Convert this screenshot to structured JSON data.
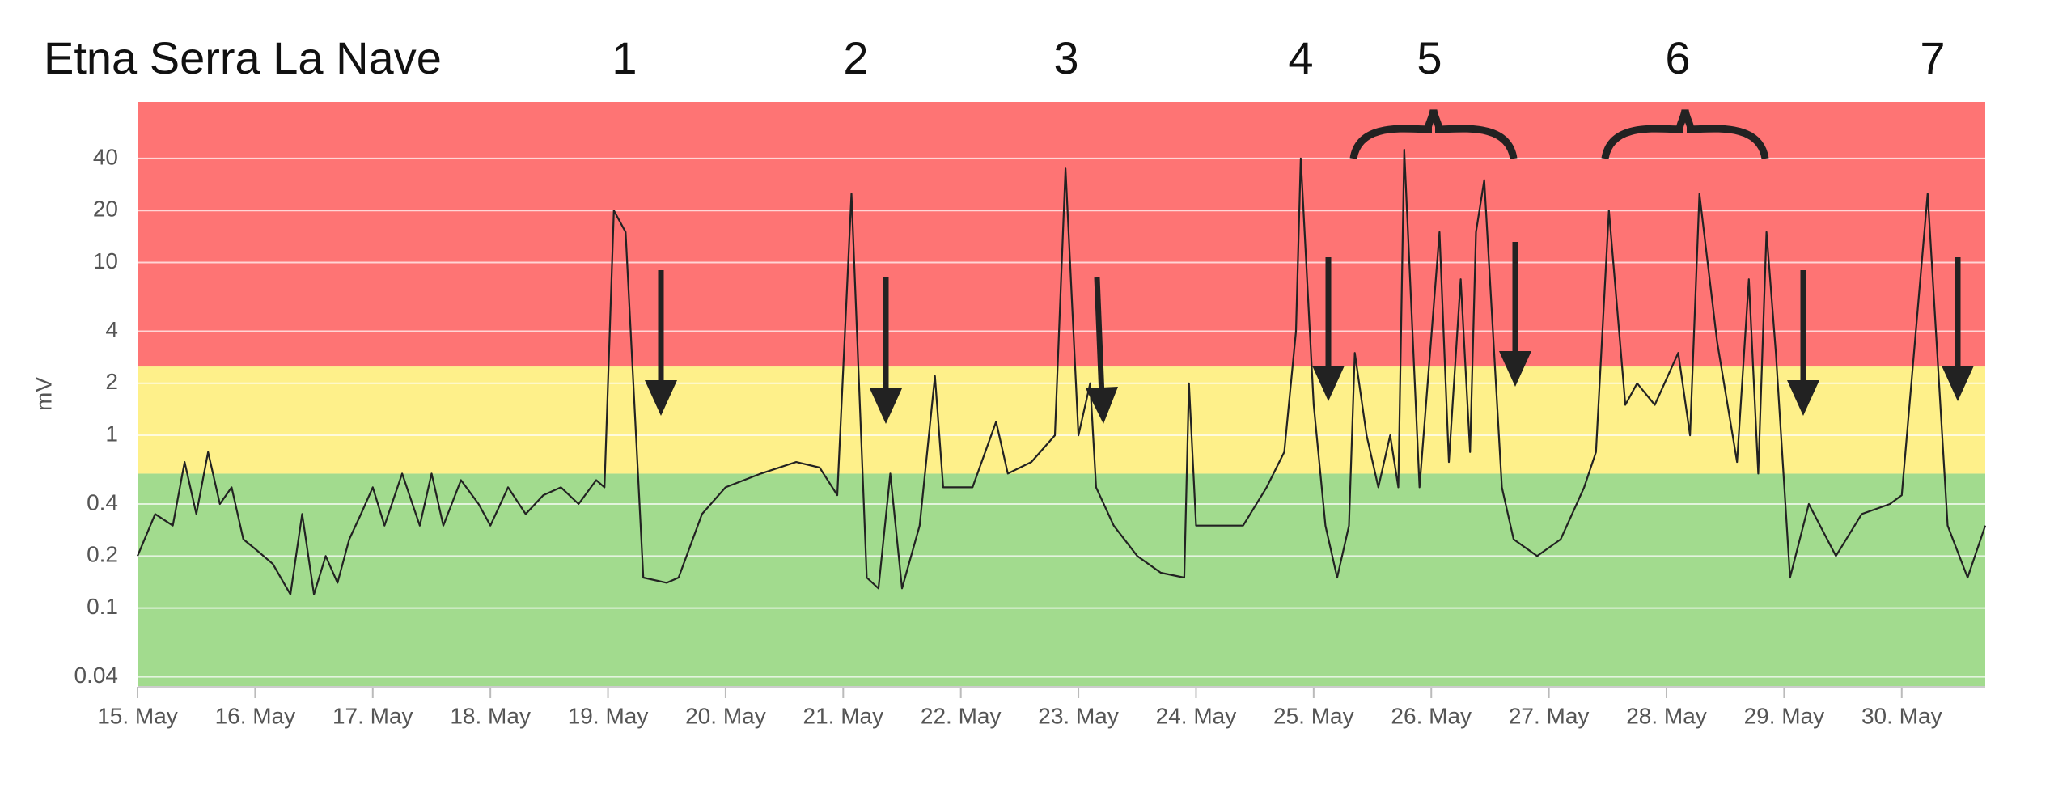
{
  "chart_data": {
    "type": "line",
    "title": "Etna Serra La Nave",
    "y_label": "mV",
    "log_y": true,
    "grid": true,
    "color": "#222222",
    "thresholds": [
      0.6,
      2.5
    ],
    "band_colors": [
      "#a2db8e",
      "#fef08a",
      "#fe7474"
    ],
    "annotations": [
      "1",
      "2",
      "3",
      "4",
      "5",
      "6",
      "7"
    ],
    "xlim": [
      15,
      30.71
    ],
    "xticks": [
      {
        "value": 15,
        "label": "15. May"
      },
      {
        "value": 16,
        "label": "16. May"
      },
      {
        "value": 17,
        "label": "17. May"
      },
      {
        "value": 18,
        "label": "18. May"
      },
      {
        "value": 19,
        "label": "19. May"
      },
      {
        "value": 20,
        "label": "20. May"
      },
      {
        "value": 21,
        "label": "21. May"
      },
      {
        "value": 22,
        "label": "22. May"
      },
      {
        "value": 23,
        "label": "23. May"
      },
      {
        "value": 24,
        "label": "24. May"
      },
      {
        "value": 25,
        "label": "25. May"
      },
      {
        "value": 26,
        "label": "26. May"
      },
      {
        "value": 27,
        "label": "27. May"
      },
      {
        "value": 28,
        "label": "28. May"
      },
      {
        "value": 29,
        "label": "29. May"
      },
      {
        "value": 30,
        "label": "30. May"
      }
    ],
    "ylim": [
      0.035,
      85
    ],
    "yticks": [
      0.04,
      0.1,
      0.2,
      0.4,
      1,
      2,
      4,
      10,
      20,
      40
    ],
    "x": [
      15.0,
      15.15,
      15.3,
      15.4,
      15.5,
      15.6,
      15.7,
      15.8,
      15.9,
      16.0,
      16.15,
      16.3,
      16.4,
      16.5,
      16.6,
      16.7,
      16.8,
      16.9,
      17.0,
      17.1,
      17.25,
      17.4,
      17.5,
      17.6,
      17.75,
      17.9,
      18.0,
      18.15,
      18.3,
      18.45,
      18.6,
      18.75,
      18.9,
      18.97,
      19.05,
      19.15,
      19.3,
      19.5,
      19.6,
      19.8,
      20.0,
      20.3,
      20.6,
      20.8,
      20.95,
      21.07,
      21.2,
      21.3,
      21.4,
      21.5,
      21.65,
      21.78,
      21.85,
      22.1,
      22.3,
      22.4,
      22.6,
      22.8,
      22.89,
      23.0,
      23.1,
      23.15,
      23.3,
      23.5,
      23.7,
      23.9,
      23.94,
      24.0,
      24.2,
      24.4,
      24.6,
      24.75,
      24.85,
      24.89,
      25.0,
      25.1,
      25.2,
      25.3,
      25.35,
      25.45,
      25.55,
      25.65,
      25.72,
      25.77,
      25.9,
      26.07,
      26.15,
      26.25,
      26.33,
      26.38,
      26.45,
      26.6,
      26.7,
      26.9,
      27.1,
      27.3,
      27.4,
      27.51,
      27.65,
      27.75,
      27.9,
      28.1,
      28.2,
      28.28,
      28.43,
      28.6,
      28.7,
      28.78,
      28.85,
      28.93,
      29.05,
      29.21,
      29.44,
      29.66,
      29.9,
      30.0,
      30.22,
      30.39,
      30.56,
      30.71
    ],
    "values": [
      0.2,
      0.35,
      0.3,
      0.7,
      0.35,
      0.8,
      0.4,
      0.5,
      0.25,
      0.22,
      0.18,
      0.12,
      0.35,
      0.12,
      0.2,
      0.14,
      0.25,
      0.35,
      0.5,
      0.3,
      0.6,
      0.3,
      0.6,
      0.3,
      0.55,
      0.4,
      0.3,
      0.5,
      0.35,
      0.45,
      0.5,
      0.4,
      0.55,
      0.5,
      20,
      15,
      0.15,
      0.14,
      0.15,
      0.35,
      0.5,
      0.6,
      0.7,
      0.65,
      0.45,
      25,
      0.15,
      0.13,
      0.6,
      0.13,
      0.3,
      2.2,
      0.5,
      0.5,
      1.2,
      0.6,
      0.7,
      1.0,
      35,
      1.0,
      2,
      0.5,
      0.3,
      0.2,
      0.16,
      0.15,
      2,
      0.3,
      0.3,
      0.3,
      0.5,
      0.8,
      4,
      40,
      1.5,
      0.3,
      0.15,
      0.3,
      3,
      1,
      0.5,
      1,
      0.5,
      45,
      0.5,
      15,
      0.7,
      8,
      0.8,
      15,
      30,
      0.5,
      0.25,
      0.2,
      0.25,
      0.5,
      0.8,
      20,
      1.5,
      2,
      1.5,
      3,
      1,
      25,
      3.5,
      0.7,
      8,
      0.6,
      15,
      3,
      0.15,
      0.4,
      0.2,
      0.35,
      0.4,
      0.45,
      25,
      0.3,
      0.15,
      0.3
    ]
  }
}
